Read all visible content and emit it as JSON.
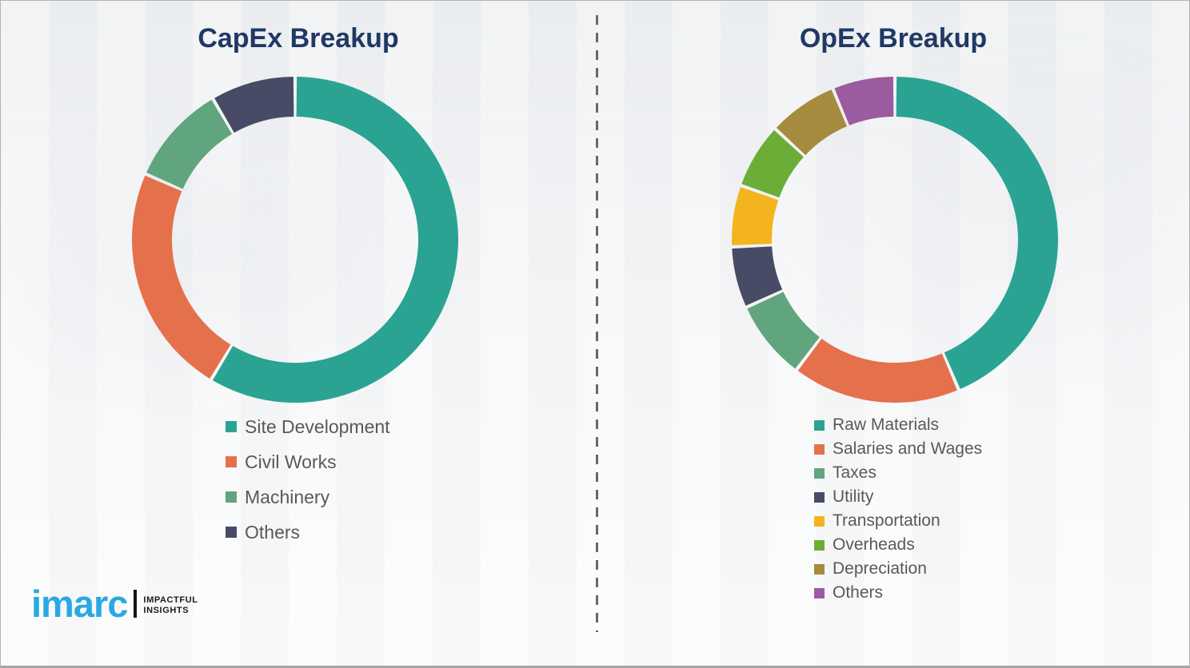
{
  "chart_data": [
    {
      "type": "pie",
      "subtype": "donut",
      "title": "CapEx Breakup",
      "labels": [
        "Site Development",
        "Civil Works",
        "Machinery",
        "Others"
      ],
      "values": [
        58.6,
        23.0,
        10.0,
        8.4
      ],
      "colors": [
        "#2aa392",
        "#e5714c",
        "#61a57e",
        "#474b66"
      ],
      "start_angle": "top",
      "direction": "clockwise",
      "inner_radius_ratio": 0.755,
      "legend_position": "below-left",
      "data_labels_shown": false
    },
    {
      "type": "pie",
      "subtype": "donut",
      "title": "OpEx Breakup",
      "labels": [
        "Raw Materials",
        "Salaries and Wages",
        "Taxes",
        "Utility",
        "Transportation",
        "Overheads",
        "Depreciation",
        "Others"
      ],
      "values": [
        43.6,
        16.7,
        7.9,
        6.1,
        6.1,
        6.5,
        6.9,
        6.2
      ],
      "colors": [
        "#2aa392",
        "#e5714c",
        "#61a57e",
        "#474b66",
        "#f3b41d",
        "#6cad38",
        "#a68a3e",
        "#9b5ba0"
      ],
      "start_angle": "top",
      "direction": "clockwise",
      "inner_radius_ratio": 0.755,
      "legend_position": "below-left",
      "data_labels_shown": false
    }
  ],
  "style": {
    "title_color": "#203864",
    "legend_text_color": "#595959",
    "divider_color": "#686868",
    "background_color": "#f3f4f6"
  },
  "logo": {
    "brand": "imarc",
    "brand_color": "#29a9e1",
    "tagline_line1": "IMPACTFUL",
    "tagline_line2": "INSIGHTS"
  }
}
